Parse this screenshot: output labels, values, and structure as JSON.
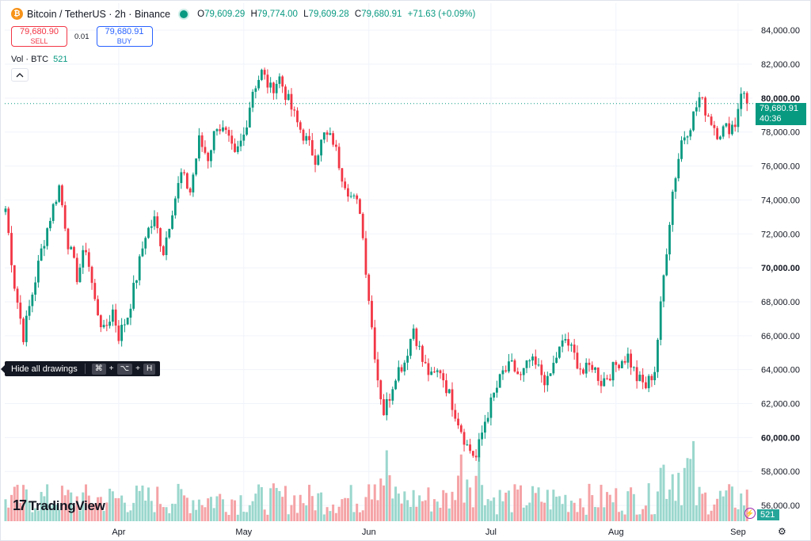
{
  "legend": {
    "logo_letter": "₿",
    "symbol": "Bitcoin / TetherUS · 2h · Binance",
    "open_label": "O",
    "open": "79,609.29",
    "high_label": "H",
    "high": "79,774.00",
    "low_label": "L",
    "low": "79,609.28",
    "close_label": "C",
    "close": "79,680.91",
    "change": "+71.63 (+0.09%)"
  },
  "trade": {
    "sell_price": "79,680.90",
    "sell_label": "SELL",
    "spread": "0.01",
    "buy_price": "79,680.91",
    "buy_label": "BUY"
  },
  "volume_legend": {
    "label": "Vol · BTC",
    "value": "521"
  },
  "collapse_icon": "chevron-up-icon",
  "tooltip": {
    "text": "Hide all drawings",
    "key1": "⌘",
    "key2": "⌥",
    "key3": "H"
  },
  "branding": {
    "mark": "17",
    "name": "TradingView"
  },
  "price_tag": {
    "price": "79,680.91",
    "countdown": "40:36"
  },
  "volume_tag": "521",
  "colors": {
    "up": "#089981",
    "down": "#f23645",
    "vol_up": "#9ad7cd",
    "vol_down": "#f5a3a6",
    "grid": "#f0f3fa"
  },
  "chart_data": {
    "type": "candlestick",
    "symbol": "BTC/USDT",
    "interval": "2h",
    "y_axis": {
      "ticks": [
        "56,000.00",
        "58,000.00",
        "60,000.00",
        "62,000.00",
        "64,000.00",
        "66,000.00",
        "68,000.00",
        "70,000.00",
        "72,000.00",
        "74,000.00",
        "76,000.00",
        "78,000.00",
        "80,000.00",
        "82,000.00",
        "84,000.00"
      ],
      "ylim": [
        55000,
        84800
      ]
    },
    "x_axis": {
      "ticks": [
        "Apr",
        "May",
        "Jun",
        "Jul",
        "Aug",
        "Sep"
      ]
    },
    "price_path": [
      [
        0,
        73500
      ],
      [
        3,
        69000
      ],
      [
        6,
        66000
      ],
      [
        9,
        68500
      ],
      [
        12,
        71000
      ],
      [
        15,
        73000
      ],
      [
        18,
        74800
      ],
      [
        21,
        71500
      ],
      [
        24,
        69500
      ],
      [
        27,
        71200
      ],
      [
        30,
        68000
      ],
      [
        33,
        66200
      ],
      [
        36,
        67500
      ],
      [
        38,
        66000
      ],
      [
        41,
        67200
      ],
      [
        44,
        69500
      ],
      [
        47,
        72000
      ],
      [
        50,
        72800
      ],
      [
        53,
        71000
      ],
      [
        56,
        73500
      ],
      [
        59,
        75500
      ],
      [
        62,
        74500
      ],
      [
        65,
        77500
      ],
      [
        68,
        76500
      ],
      [
        71,
        78500
      ],
      [
        74,
        77800
      ],
      [
        77,
        76500
      ],
      [
        80,
        77800
      ],
      [
        83,
        80500
      ],
      [
        86,
        81500
      ],
      [
        89,
        80500
      ],
      [
        92,
        81200
      ],
      [
        95,
        79800
      ],
      [
        98,
        78500
      ],
      [
        101,
        77500
      ],
      [
        104,
        76500
      ],
      [
        107,
        77800
      ],
      [
        110,
        77500
      ],
      [
        113,
        75500
      ],
      [
        116,
        74200
      ],
      [
        119,
        73500
      ],
      [
        121,
        70000
      ],
      [
        123,
        66500
      ],
      [
        125,
        63500
      ],
      [
        127,
        61500
      ],
      [
        129,
        62500
      ],
      [
        131,
        63800
      ],
      [
        134,
        64500
      ],
      [
        137,
        66500
      ],
      [
        140,
        64500
      ],
      [
        143,
        63500
      ],
      [
        146,
        64000
      ],
      [
        149,
        62500
      ],
      [
        152,
        61000
      ],
      [
        155,
        59500
      ],
      [
        158,
        58800
      ],
      [
        161,
        61000
      ],
      [
        164,
        62500
      ],
      [
        167,
        63800
      ],
      [
        170,
        64200
      ],
      [
        173,
        63500
      ],
      [
        176,
        64500
      ],
      [
        179,
        64000
      ],
      [
        182,
        63200
      ],
      [
        185,
        64800
      ],
      [
        188,
        65800
      ],
      [
        191,
        64800
      ],
      [
        194,
        63800
      ],
      [
        197,
        64300
      ],
      [
        200,
        63300
      ],
      [
        203,
        63800
      ],
      [
        206,
        64500
      ],
      [
        209,
        64800
      ],
      [
        212,
        63500
      ],
      [
        215,
        63000
      ],
      [
        218,
        64000
      ],
      [
        221,
        69500
      ],
      [
        224,
        74500
      ],
      [
        227,
        77500
      ],
      [
        230,
        78500
      ],
      [
        233,
        80000
      ],
      [
        236,
        79000
      ],
      [
        239,
        78000
      ],
      [
        242,
        78200
      ],
      [
        245,
        78500
      ],
      [
        247,
        80500
      ],
      [
        249,
        79680.91
      ]
    ]
  }
}
